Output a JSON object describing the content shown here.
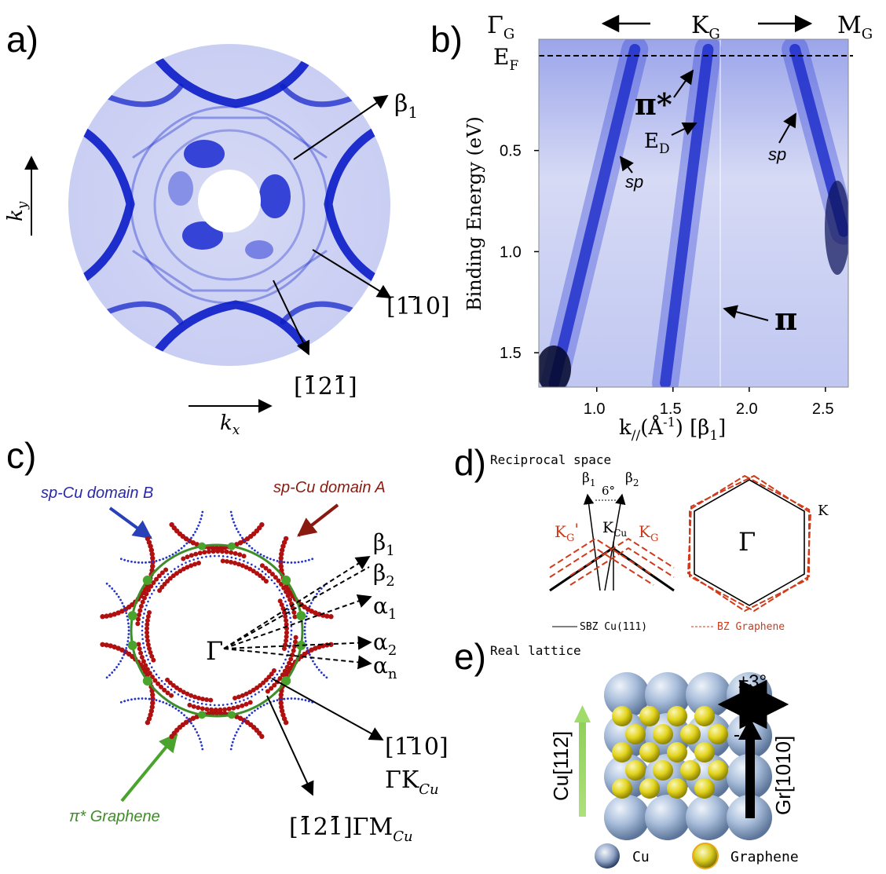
{
  "panels": {
    "a": {
      "label": "a)",
      "ky": "k",
      "ky_sub": "y",
      "kx": "k",
      "kx_sub": "x",
      "beta1": "β",
      "beta1_sub": "1",
      "dir_110": "[110]",
      "dir_121": "[121]"
    },
    "b": {
      "label": "b)",
      "gamma": "Γ",
      "gamma_sub": "G",
      "k": "K",
      "k_sub": "G",
      "m": "M",
      "m_sub": "G",
      "ef": "E",
      "ef_sub": "F",
      "pi_star": "π*",
      "pi": "π",
      "ed": "E",
      "ed_sub": "D",
      "sp_left": "sp",
      "sp_right": "sp",
      "ylabel": "Binding Energy (eV)",
      "xlabel_main": "k",
      "xlabel_sub": "//",
      "xlabel_unit": "(Å",
      "xlabel_exp": "-1",
      "xlabel_end": ") [β",
      "xlabel_end_sub": "1",
      "xlabel_close": "]",
      "yticks": [
        "0.5",
        "1.0",
        "1.5"
      ],
      "xticks": [
        "1.0",
        "1.5",
        "2.0",
        "2.5"
      ]
    },
    "c": {
      "label": "c)",
      "domain_b": "sp-Cu domain B",
      "domain_a": "sp-Cu domain A",
      "graphene": "π* Graphene",
      "gamma": "Γ",
      "beta1": "β",
      "beta1_sub": "1",
      "beta2": "β",
      "beta2_sub": "2",
      "alpha1": "α",
      "alpha1_sub": "1",
      "alpha2": "α",
      "alpha2_sub": "2",
      "alphan": "α",
      "alphan_sub": "n",
      "dir_110": "[110]",
      "gk": "ΓK",
      "gk_sub": "Cu",
      "dir_121": "[121]ΓM",
      "gm_sub": "Cu"
    },
    "d": {
      "label": "d)",
      "title": "Reciprocal space",
      "b1": "β",
      "b1_sub": "1",
      "b2": "β",
      "b2_sub": "2",
      "angle": "6°",
      "kg_prime": "K",
      "kg_prime_sub": "G",
      "kg_prime_mark": "'",
      "kcu": "K",
      "kcu_sub": "Cu",
      "kg": "K",
      "kg_sub": "G",
      "gamma": "Γ",
      "k": "K",
      "sbz": "SBZ Cu(111)",
      "bz": "BZ Graphene"
    },
    "e": {
      "label": "e)",
      "title": "Real lattice",
      "angle": "±3°",
      "cu_dir": "Cu[112]",
      "gr_dir": "Gr[1010]",
      "legend_cu": "Cu",
      "legend_gr": "Graphene"
    }
  },
  "chart_data": {
    "type": "heatmap",
    "ylabel": "Binding Energy (eV)",
    "xlabel": "k// (Å-1) [β1]",
    "xlim": [
      0.62,
      2.65
    ],
    "ylim": [
      -0.05,
      1.67
    ],
    "xticks": [
      1.0,
      1.5,
      2.0,
      2.5
    ],
    "yticks": [
      0.5,
      1.0,
      1.5
    ],
    "bands": [
      {
        "name": "sp",
        "x": [
          0.72,
          1.25
        ],
        "y": [
          1.65,
          0.0
        ]
      },
      {
        "name": "π",
        "x": [
          1.45,
          1.73
        ],
        "y": [
          1.65,
          0.0
        ]
      },
      {
        "name": "sp",
        "x": [
          2.3,
          2.62
        ],
        "y": [
          0.0,
          0.9
        ]
      }
    ]
  },
  "colors": {
    "band_blue": "#0b1cc8",
    "band_light": "#c8cdf4",
    "red_dots": "#b01010",
    "blue_dots": "#2233cc",
    "green": "#3f8d2a",
    "dashed_red": "#d03a1a",
    "cu_sphere": "#9fb6d6",
    "graphene_sphere": "#e0d21a"
  }
}
